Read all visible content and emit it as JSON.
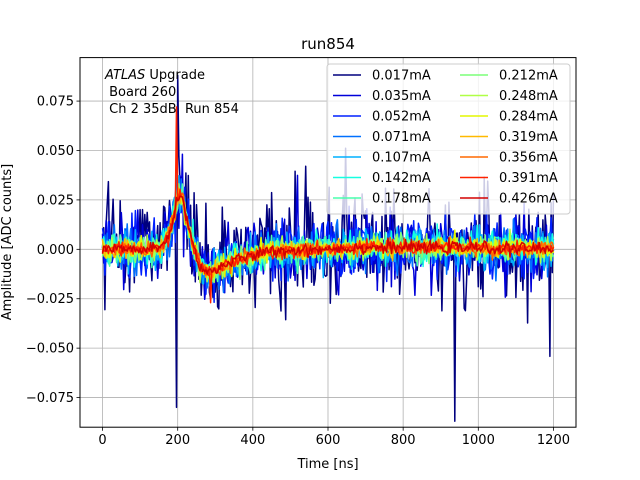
{
  "chart_data": {
    "type": "line",
    "title": "run854",
    "xlabel": "Time [ns]",
    "ylabel": "Amplitude [ADC counts]",
    "xlim": [
      -60,
      1260
    ],
    "ylim": [
      -0.09,
      0.097
    ],
    "xticks": [
      0,
      200,
      400,
      600,
      800,
      1000,
      1200
    ],
    "yticks": [
      -0.075,
      -0.05,
      -0.025,
      0.0,
      0.025,
      0.05,
      0.075
    ],
    "xtick_labels": [
      "0",
      "200",
      "400",
      "600",
      "800",
      "1000",
      "1200"
    ],
    "ytick_labels": [
      "−0.075",
      "−0.050",
      "−0.025",
      "0.000",
      "0.025",
      "0.050",
      "0.075"
    ],
    "grid": true,
    "legend_position": "top-right",
    "legend_columns": 2,
    "annotation": {
      "italic_word": "ATLAS",
      "line1_rest": " Upgrade",
      "line2": " Board 260",
      "line3": " Ch 2 35dB  Run 854"
    },
    "signal_shape": {
      "x": [
        0,
        150,
        175,
        190,
        200,
        212,
        235,
        260,
        285,
        320,
        380,
        450,
        550,
        700,
        900,
        1200
      ],
      "y": [
        0.0,
        0.0,
        0.006,
        0.017,
        0.027,
        0.026,
        0.006,
        -0.009,
        -0.012,
        -0.008,
        -0.004,
        -0.001,
        0.0,
        0.001,
        0.001,
        0.0
      ]
    },
    "series": [
      {
        "name": "0.017mA",
        "color": "#00007f",
        "noise_amplitude": 0.024
      },
      {
        "name": "0.035mA",
        "color": "#0000d9",
        "noise_amplitude": 0.016
      },
      {
        "name": "0.052mA",
        "color": "#0020ff",
        "noise_amplitude": 0.013
      },
      {
        "name": "0.071mA",
        "color": "#0070ff",
        "noise_amplitude": 0.011
      },
      {
        "name": "0.107mA",
        "color": "#00b0ff",
        "noise_amplitude": 0.009
      },
      {
        "name": "0.142mA",
        "color": "#16ffe1",
        "noise_amplitude": 0.0075
      },
      {
        "name": "0.178mA",
        "color": "#49ffad",
        "noise_amplitude": 0.0065
      },
      {
        "name": "0.212mA",
        "color": "#7cff79",
        "noise_amplitude": 0.0055
      },
      {
        "name": "0.248mA",
        "color": "#b0ff46",
        "noise_amplitude": 0.005
      },
      {
        "name": "0.284mA",
        "color": "#e4f700",
        "noise_amplitude": 0.0045
      },
      {
        "name": "0.319mA",
        "color": "#ffb900",
        "noise_amplitude": 0.004
      },
      {
        "name": "0.356mA",
        "color": "#ff6800",
        "noise_amplitude": 0.0035
      },
      {
        "name": "0.391mA",
        "color": "#ff2200",
        "noise_amplitude": 0.003
      },
      {
        "name": "0.426mA",
        "color": "#d40000",
        "noise_amplitude": 0.0028
      }
    ]
  }
}
